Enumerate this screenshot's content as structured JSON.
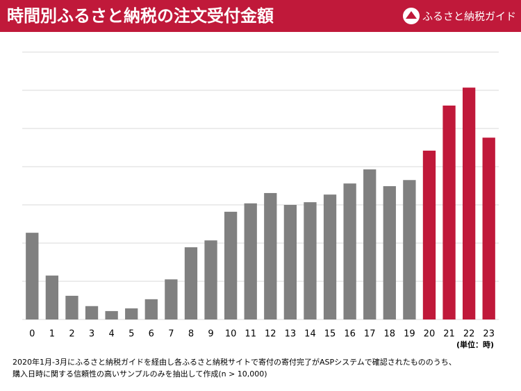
{
  "chart_data": {
    "type": "bar",
    "title": "時間別ふるさと納税の注文受付金額",
    "brand": "ふるさと納税ガイド",
    "unit_label": "(単位：時)",
    "footnote": [
      "2020年1月-3月にふるさと納税ガイドを経由し各ふるさと納税サイトで寄付の寄付完了がASPシステムで確認されたもののうち、",
      "購入日時に関する信頼性の高いサンプルのみを抽出して作成(n > 10,000)"
    ],
    "categories": [
      "0",
      "1",
      "2",
      "3",
      "4",
      "5",
      "6",
      "7",
      "8",
      "9",
      "10",
      "11",
      "12",
      "13",
      "14",
      "15",
      "16",
      "17",
      "18",
      "19",
      "20",
      "21",
      "22",
      "23"
    ],
    "values": [
      2.27,
      1.15,
      0.62,
      0.35,
      0.22,
      0.29,
      0.53,
      1.05,
      1.89,
      2.07,
      2.82,
      3.04,
      3.31,
      3.0,
      3.07,
      3.27,
      3.56,
      3.93,
      3.49,
      3.65,
      4.42,
      5.6,
      6.07,
      4.76
    ],
    "colors": [
      "#808080",
      "#808080",
      "#808080",
      "#808080",
      "#808080",
      "#808080",
      "#808080",
      "#808080",
      "#808080",
      "#808080",
      "#808080",
      "#808080",
      "#808080",
      "#808080",
      "#808080",
      "#808080",
      "#808080",
      "#808080",
      "#808080",
      "#808080",
      "#c0193a",
      "#c0193a",
      "#c0193a",
      "#c0193a"
    ],
    "ylim": [
      0,
      7
    ],
    "yticks": [
      0,
      1,
      2,
      3,
      4,
      5,
      6,
      7
    ],
    "grid": true
  }
}
